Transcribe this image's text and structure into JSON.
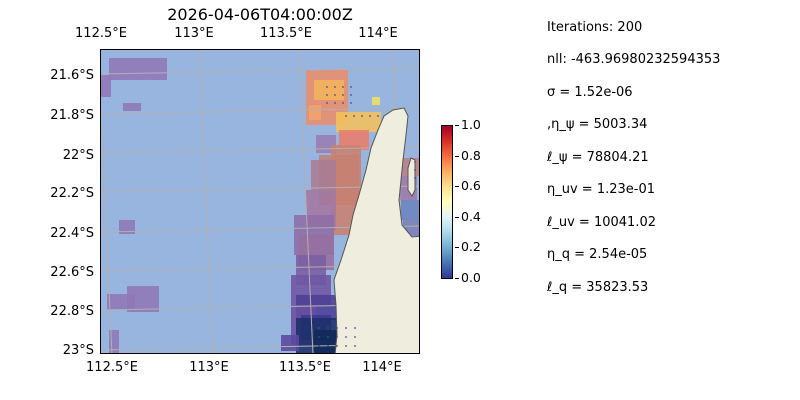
{
  "map": {
    "title": "2026-04-06T04:00:00Z",
    "lon_ticks": [
      "112.5°E",
      "113°E",
      "113.5°E",
      "114°E"
    ],
    "lat_ticks": [
      "21.6°S",
      "21.8°S",
      "22°S",
      "22.2°S",
      "22.4°S",
      "22.6°S",
      "22.8°S",
      "23°S"
    ],
    "colors": {
      "ocean": "#98b5e0",
      "land": "#efedde",
      "coastline": "#555555",
      "gridline": "#b0b0b0"
    }
  },
  "colorbar": {
    "ticks": [
      "1.0",
      "0.8",
      "0.6",
      "0.4",
      "0.2",
      "0.0"
    ],
    "colormap": "RdYlBu_r"
  },
  "params": [
    "Iterations: 200",
    "nll: -463.96980232594353",
    "σ = 1.52e-06",
    ",η_ψ = 5003.34",
    "ℓ_ψ = 78804.21",
    "η_uv = 1.23e-01",
    "ℓ_uv = 10041.02",
    "η_q = 2.54e-05",
    "ℓ_q = 35823.53"
  ]
}
